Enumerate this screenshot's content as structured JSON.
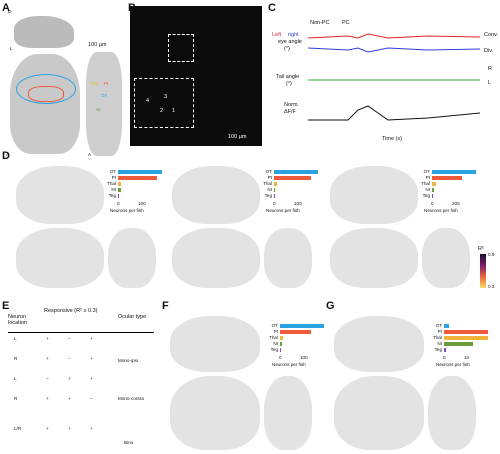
{
  "colors": {
    "ot": "#2ba3e0",
    "pt": "#ef5a3a",
    "thal": "#f0b43c",
    "ni": "#6b9c3a",
    "teg": "#8a4ab8",
    "left": "#e0252a",
    "right": "#2a3fd8",
    "tail": "#2ea836"
  },
  "panel_labels": {
    "a": "A",
    "b": "B",
    "c": "C",
    "d": "D",
    "e": "E",
    "f": "F",
    "g": "G"
  },
  "panel_a": {
    "orient_d": "D",
    "orient_l": "L",
    "orient_a": "A",
    "orient_a2": "A",
    "scale": "100 µm",
    "regions": [
      "Thal",
      "Pt",
      "OT",
      "NI"
    ]
  },
  "panel_b": {
    "scale": "100 µm",
    "roi_labels": [
      "4",
      "3",
      "2",
      "1"
    ]
  },
  "panel_c": {
    "cond_labels": [
      "Non-PC",
      "PC"
    ],
    "eye_label_left": "Left",
    "eye_label_right": "right",
    "eye_label_rest": " eye angle",
    "eye_unit": "(°)",
    "tail_label": "Tail angle",
    "tail_unit": "(°)",
    "norm_label": "Norm.",
    "df_label": "ΔF/F",
    "ticks": [
      "0",
      "4",
      "0",
      "4"
    ],
    "xlabel": "Time (s)",
    "conv": "Conv.",
    "div": "Div.",
    "r": "R",
    "l": "L"
  },
  "bar_chart": {
    "categories": [
      "OT",
      "Pt",
      "Thal",
      "NI",
      "Teg"
    ],
    "xlabel": "Neurons per fish"
  },
  "panel_d": [
    {
      "values": [
        130,
        115,
        10,
        8,
        3
      ],
      "ticks": [
        "0",
        "100"
      ]
    },
    {
      "values": [
        95,
        80,
        6,
        3,
        2
      ],
      "ticks": [
        "0",
        "100"
      ]
    },
    {
      "values": [
        230,
        155,
        20,
        12,
        5
      ],
      "ticks": [
        "0",
        "200"
      ]
    }
  ],
  "panel_f": {
    "values": [
      135,
      95,
      8,
      5,
      2
    ],
    "ticks": [
      "0",
      "100"
    ]
  },
  "panel_g": {
    "values": [
      1,
      9,
      9,
      6,
      0.5
    ],
    "ticks": [
      "0",
      "10"
    ]
  },
  "colorbar": {
    "label": "R²",
    "max": "0.9",
    "min": "0.3"
  },
  "panel_e": {
    "header": [
      "Neuron location",
      "Responsive (R² ≥ 0.3)",
      "Ocular type"
    ],
    "rows": [
      [
        "L",
        "+",
        "–",
        "+"
      ],
      [
        "R",
        "+",
        "–",
        "+"
      ],
      [
        "L",
        "–",
        "+",
        "+"
      ],
      [
        "R",
        "+",
        "+",
        "–"
      ],
      [
        "L/R",
        "+",
        "+",
        "+"
      ]
    ],
    "types": [
      "Mono-ipsi",
      "Mono-contra",
      "Bino"
    ]
  }
}
